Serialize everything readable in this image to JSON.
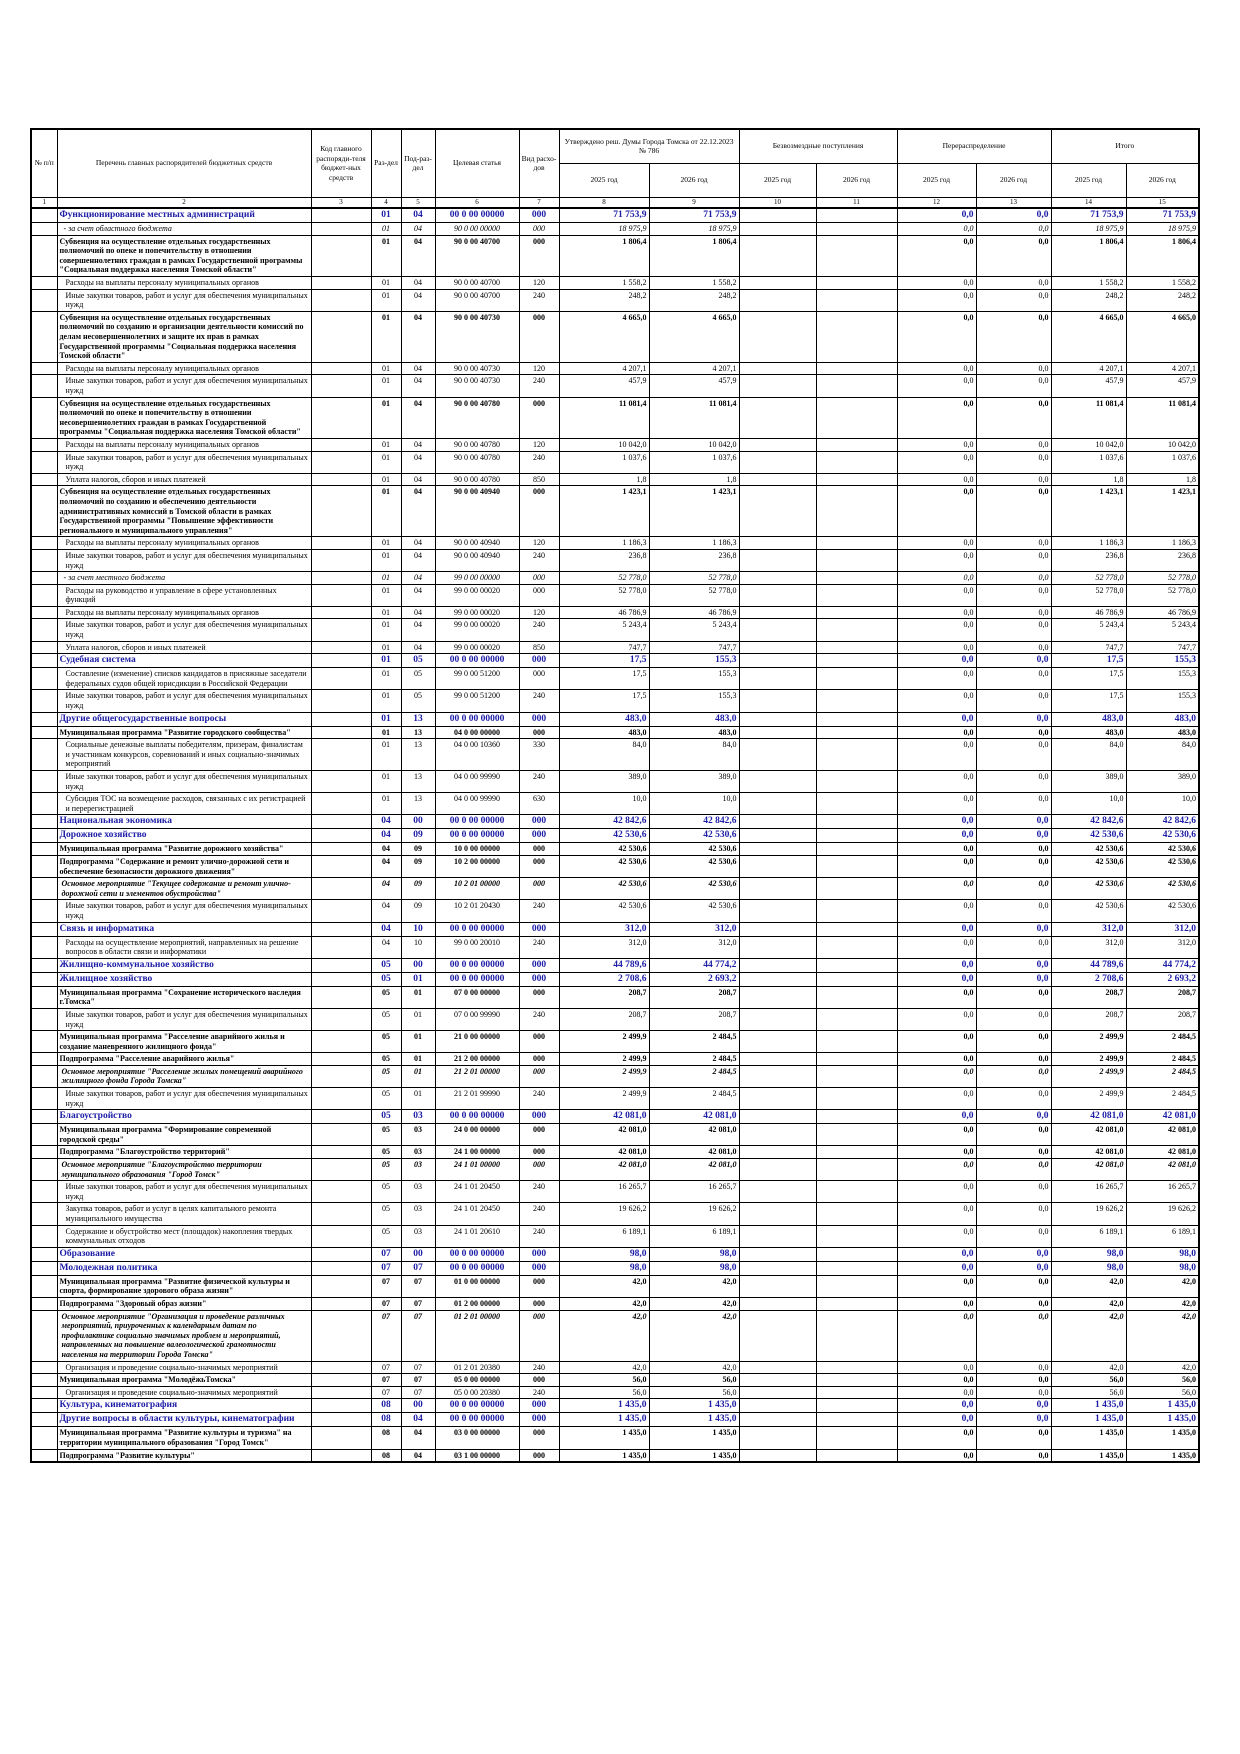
{
  "table": {
    "header": {
      "cols": [
        "№ п/п",
        "Перечень главных распорядителей бюджетных средств",
        "Код главного распоряди-теля бюджет-ных средств",
        "Раз-дел",
        "Под-раз-дел",
        "Целевая статья",
        "Вид расхо-дов"
      ],
      "groups": [
        "Утверждено реш. Думы Города Томска от 22.12.2023 № 786",
        "Безвозмездные поступления",
        "Перераспределение",
        "Итого"
      ],
      "years": [
        "2025 год",
        "2026 год",
        "2025 год",
        "2026 год",
        "2025 год",
        "2026 год",
        "2025 год",
        "2026 год"
      ]
    },
    "numbers": [
      1,
      2,
      3,
      4,
      5,
      6,
      7,
      8,
      9,
      10,
      11,
      12,
      13,
      14,
      15
    ],
    "rows": [
      [
        "s",
        "Функционирование местных администраций",
        "01",
        "04",
        "00 0 00 00000",
        "000",
        "71 753,9",
        "71 753,9",
        "0,0",
        "0,0",
        "71 753,9",
        "71 753,9"
      ],
      [
        "i",
        "- за счет областного бюджета",
        "01",
        "04",
        "90 0 00 00000",
        "000",
        "18 975,9",
        "18 975,9",
        "0,0",
        "0,0",
        "18 975,9",
        "18 975,9"
      ],
      [
        "b",
        "Субвенция на осуществление отдельных государственных полномочий по опеке и попечительству в отношении совершеннолетних граждан в рамках Государственной программы \"Социальная поддержка населения Томской области\"",
        "01",
        "04",
        "90 0 00 40700",
        "000",
        "1 806,4",
        "1 806,4",
        "0,0",
        "0,0",
        "1 806,4",
        "1 806,4"
      ],
      [
        "n",
        "Расходы на выплаты персоналу муниципальных органов",
        "01",
        "04",
        "90 0 00 40700",
        "120",
        "1 558,2",
        "1 558,2",
        "0,0",
        "0,0",
        "1 558,2",
        "1 558,2"
      ],
      [
        "n",
        "Иные закупки товаров, работ и услуг для обеспечения муниципальных нужд",
        "01",
        "04",
        "90 0 00 40700",
        "240",
        "248,2",
        "248,2",
        "0,0",
        "0,0",
        "248,2",
        "248,2"
      ],
      [
        "b",
        "Субвенция на осуществление отдельных государственных полномочий по созданию и организации деятельности комиссий по делам несовершеннолетних и защите их прав в рамках Государственной программы \"Социальная поддержка населения Томской области\"",
        "01",
        "04",
        "90 0 00 40730",
        "000",
        "4 665,0",
        "4 665,0",
        "0,0",
        "0,0",
        "4 665,0",
        "4 665,0"
      ],
      [
        "n",
        "Расходы на выплаты персоналу муниципальных органов",
        "01",
        "04",
        "90 0 00 40730",
        "120",
        "4 207,1",
        "4 207,1",
        "0,0",
        "0,0",
        "4 207,1",
        "4 207,1"
      ],
      [
        "n",
        "Иные закупки товаров, работ и услуг для обеспечения муниципальных нужд",
        "01",
        "04",
        "90 0 00 40730",
        "240",
        "457,9",
        "457,9",
        "0,0",
        "0,0",
        "457,9",
        "457,9"
      ],
      [
        "b",
        "Субвенция на осуществление отдельных государственных полномочий по опеке и попечительству в отношении несовершеннолетних граждан в рамках Государственной программы \"Социальная поддержка населения Томской области\"",
        "01",
        "04",
        "90 0 00 40780",
        "000",
        "11 081,4",
        "11 081,4",
        "0,0",
        "0,0",
        "11 081,4",
        "11 081,4"
      ],
      [
        "n",
        "Расходы на выплаты персоналу муниципальных органов",
        "01",
        "04",
        "90 0 00 40780",
        "120",
        "10 042,0",
        "10 042,0",
        "0,0",
        "0,0",
        "10 042,0",
        "10 042,0"
      ],
      [
        "n",
        "Иные закупки товаров, работ и услуг для обеспечения муниципальных нужд",
        "01",
        "04",
        "90 0 00 40780",
        "240",
        "1 037,6",
        "1 037,6",
        "0,0",
        "0,0",
        "1 037,6",
        "1 037,6"
      ],
      [
        "n",
        "Уплата налогов, сборов и иных платежей",
        "01",
        "04",
        "90 0 00 40780",
        "850",
        "1,8",
        "1,8",
        "0,0",
        "0,0",
        "1,8",
        "1,8"
      ],
      [
        "b",
        "Субвенция на осуществление отдельных государственных полномочий по созданию и обеспечению деятельности административных комиссий в Томской области в рамках Государственной программы \"Повышение эффективности регионального и муниципального управления\"",
        "01",
        "04",
        "90 0 00 40940",
        "000",
        "1 423,1",
        "1 423,1",
        "0,0",
        "0,0",
        "1 423,1",
        "1 423,1"
      ],
      [
        "n",
        "Расходы на выплаты персоналу муниципальных органов",
        "01",
        "04",
        "90 0 00 40940",
        "120",
        "1 186,3",
        "1 186,3",
        "0,0",
        "0,0",
        "1 186,3",
        "1 186,3"
      ],
      [
        "n",
        "Иные закупки товаров, работ и услуг для обеспечения муниципальных нужд",
        "01",
        "04",
        "90 0 00 40940",
        "240",
        "236,8",
        "236,8",
        "0,0",
        "0,0",
        "236,8",
        "236,8"
      ],
      [
        "i",
        "- за счет местного бюджета",
        "01",
        "04",
        "99 0 00 00000",
        "000",
        "52 778,0",
        "52 778,0",
        "0,0",
        "0,0",
        "52 778,0",
        "52 778,0"
      ],
      [
        "n",
        "Расходы на руководство и управление в сфере установленных функций",
        "01",
        "04",
        "99 0 00 00020",
        "000",
        "52 778,0",
        "52 778,0",
        "0,0",
        "0,0",
        "52 778,0",
        "52 778,0"
      ],
      [
        "n",
        "Расходы на выплаты персоналу муниципальных органов",
        "01",
        "04",
        "99 0 00 00020",
        "120",
        "46 786,9",
        "46 786,9",
        "0,0",
        "0,0",
        "46 786,9",
        "46 786,9"
      ],
      [
        "n",
        "Иные закупки товаров, работ и услуг для обеспечения муниципальных нужд",
        "01",
        "04",
        "99 0 00 00020",
        "240",
        "5 243,4",
        "5 243,4",
        "0,0",
        "0,0",
        "5 243,4",
        "5 243,4"
      ],
      [
        "n",
        "Уплата налогов, сборов и иных платежей",
        "01",
        "04",
        "99 0 00 00020",
        "850",
        "747,7",
        "747,7",
        "0,0",
        "0,0",
        "747,7",
        "747,7"
      ],
      [
        "s",
        "Судебная система",
        "01",
        "05",
        "00 0 00 00000",
        "000",
        "17,5",
        "155,3",
        "0,0",
        "0,0",
        "17,5",
        "155,3"
      ],
      [
        "n",
        "Составление (изменение) списков кандидатов в присяжные заседатели федеральных судов общей юрисдикции в Российской Федерации",
        "01",
        "05",
        "99 0 00 51200",
        "000",
        "17,5",
        "155,3",
        "0,0",
        "0,0",
        "17,5",
        "155,3"
      ],
      [
        "n",
        "Иные закупки товаров, работ и услуг для обеспечения муниципальных нужд",
        "01",
        "05",
        "99 0 00 51200",
        "240",
        "17,5",
        "155,3",
        "0,0",
        "0,0",
        "17,5",
        "155,3"
      ],
      [
        "s",
        "Другие общегосударственные вопросы",
        "01",
        "13",
        "00 0 00 00000",
        "000",
        "483,0",
        "483,0",
        "0,0",
        "0,0",
        "483,0",
        "483,0"
      ],
      [
        "b",
        "Муниципальная программа \"Развитие городского сообщества\"",
        "01",
        "13",
        "04 0 00 00000",
        "000",
        "483,0",
        "483,0",
        "0,0",
        "0,0",
        "483,0",
        "483,0"
      ],
      [
        "n",
        "Социальные денежные выплаты победителям, призерам, финалистам и участникам конкурсов, соревнований и иных социально-значимых мероприятий",
        "01",
        "13",
        "04 0 00 10360",
        "330",
        "84,0",
        "84,0",
        "0,0",
        "0,0",
        "84,0",
        "84,0"
      ],
      [
        "n",
        "Иные закупки товаров, работ и услуг для обеспечения муниципальных нужд",
        "01",
        "13",
        "04 0 00 99990",
        "240",
        "389,0",
        "389,0",
        "0,0",
        "0,0",
        "389,0",
        "389,0"
      ],
      [
        "n",
        "Субсидия ТОС на возмещение расходов, связанных с их регистрацией и перерегистрацией",
        "01",
        "13",
        "04 0 00 99990",
        "630",
        "10,0",
        "10,0",
        "0,0",
        "0,0",
        "10,0",
        "10,0"
      ],
      [
        "s",
        "Национальная экономика",
        "04",
        "00",
        "00 0 00 00000",
        "000",
        "42 842,6",
        "42 842,6",
        "0,0",
        "0,0",
        "42 842,6",
        "42 842,6"
      ],
      [
        "s",
        "Дорожное хозяйство",
        "04",
        "09",
        "00 0 00 00000",
        "000",
        "42 530,6",
        "42 530,6",
        "0,0",
        "0,0",
        "42 530,6",
        "42 530,6"
      ],
      [
        "b",
        "Муниципальная программа \"Развитие дорожного хозяйства\"",
        "04",
        "09",
        "10 0 00 00000",
        "000",
        "42 530,6",
        "42 530,6",
        "0,0",
        "0,0",
        "42 530,6",
        "42 530,6"
      ],
      [
        "b",
        "Подпрограмма \"Содержание и ремонт улично-дорожной сети и обеспечение безопасности дорожного движения\"",
        "04",
        "09",
        "10 2 00 00000",
        "000",
        "42 530,6",
        "42 530,6",
        "0,0",
        "0,0",
        "42 530,6",
        "42 530,6"
      ],
      [
        "bi",
        "Основное мероприятие \"Текущее содержание и ремонт улично-дорожной сети и элементов обустройства\"",
        "04",
        "09",
        "10 2 01 00000",
        "000",
        "42 530,6",
        "42 530,6",
        "0,0",
        "0,0",
        "42 530,6",
        "42 530,6"
      ],
      [
        "n",
        "Иные закупки товаров, работ и услуг для обеспечения муниципальных нужд",
        "04",
        "09",
        "10 2 01 20430",
        "240",
        "42 530,6",
        "42 530,6",
        "0,0",
        "0,0",
        "42 530,6",
        "42 530,6"
      ],
      [
        "s",
        "Связь и информатика",
        "04",
        "10",
        "00 0 00 00000",
        "000",
        "312,0",
        "312,0",
        "0,0",
        "0,0",
        "312,0",
        "312,0"
      ],
      [
        "n",
        "Расходы на осуществление мероприятий, направленных на решение вопросов в области связи и информатики",
        "04",
        "10",
        "99 0 00 20010",
        "240",
        "312,0",
        "312,0",
        "0,0",
        "0,0",
        "312,0",
        "312,0"
      ],
      [
        "s",
        "Жилищно-коммунальное хозяйство",
        "05",
        "00",
        "00 0 00 00000",
        "000",
        "44 789,6",
        "44 774,2",
        "0,0",
        "0,0",
        "44 789,6",
        "44 774,2"
      ],
      [
        "s",
        "Жилищное хозяйство",
        "05",
        "01",
        "00 0 00 00000",
        "000",
        "2 708,6",
        "2 693,2",
        "0,0",
        "0,0",
        "2 708,6",
        "2 693,2"
      ],
      [
        "b",
        "Муниципальная программа \"Сохранение исторического наследия г.Томска\"",
        "05",
        "01",
        "07 0 00 00000",
        "000",
        "208,7",
        "208,7",
        "0,0",
        "0,0",
        "208,7",
        "208,7"
      ],
      [
        "n",
        "Иные закупки товаров, работ и услуг для обеспечения муниципальных нужд",
        "05",
        "01",
        "07 0 00 99990",
        "240",
        "208,7",
        "208,7",
        "0,0",
        "0,0",
        "208,7",
        "208,7"
      ],
      [
        "b",
        "Муниципальная программа \"Расселение аварийного жилья и создание маневренного жилищного фонда\"",
        "05",
        "01",
        "21 0 00 00000",
        "000",
        "2 499,9",
        "2 484,5",
        "0,0",
        "0,0",
        "2 499,9",
        "2 484,5"
      ],
      [
        "b",
        "Подпрограмма \"Расселение аварийного жилья\"",
        "05",
        "01",
        "21 2 00 00000",
        "000",
        "2 499,9",
        "2 484,5",
        "0,0",
        "0,0",
        "2 499,9",
        "2 484,5"
      ],
      [
        "bi",
        "Основное мероприятие \"Расселение жилых помещений аварийного жилищного фонда Города Томска\"",
        "05",
        "01",
        "21 2 01 00000",
        "000",
        "2 499,9",
        "2 484,5",
        "0,0",
        "0,0",
        "2 499,9",
        "2 484,5"
      ],
      [
        "n",
        "Иные закупки товаров, работ и услуг для обеспечения муниципальных нужд",
        "05",
        "01",
        "21 2 01 99990",
        "240",
        "2 499,9",
        "2 484,5",
        "0,0",
        "0,0",
        "2 499,9",
        "2 484,5"
      ],
      [
        "s",
        "Благоустройство",
        "05",
        "03",
        "00 0 00 00000",
        "000",
        "42 081,0",
        "42 081,0",
        "0,0",
        "0,0",
        "42 081,0",
        "42 081,0"
      ],
      [
        "b",
        "Муниципальная программа \"Формирование современной городской среды\"",
        "05",
        "03",
        "24 0 00 00000",
        "000",
        "42 081,0",
        "42 081,0",
        "0,0",
        "0,0",
        "42 081,0",
        "42 081,0"
      ],
      [
        "b",
        "Подпрограмма \"Благоустройство территорий\"",
        "05",
        "03",
        "24 1 00 00000",
        "000",
        "42 081,0",
        "42 081,0",
        "0,0",
        "0,0",
        "42 081,0",
        "42 081,0"
      ],
      [
        "bi",
        "Основное мероприятие \"Благоустройство территории муниципального образования \"Город Томск\"",
        "05",
        "03",
        "24 1 01 00000",
        "000",
        "42 081,0",
        "42 081,0",
        "0,0",
        "0,0",
        "42 081,0",
        "42 081,0"
      ],
      [
        "n",
        "Иные закупки товаров, работ и услуг для обеспечения муниципальных нужд",
        "05",
        "03",
        "24 1 01 20450",
        "240",
        "16 265,7",
        "16 265,7",
        "0,0",
        "0,0",
        "16 265,7",
        "16 265,7"
      ],
      [
        "n",
        "Закупка товаров, работ и услуг в целях капитального ремонта муниципального имущества",
        "05",
        "03",
        "24 1 01 20450",
        "240",
        "19 626,2",
        "19 626,2",
        "0,0",
        "0,0",
        "19 626,2",
        "19 626,2"
      ],
      [
        "n",
        "Содержание и обустройство мест (площадок) накопления твердых коммунальных отходов",
        "05",
        "03",
        "24 1 01 20610",
        "240",
        "6 189,1",
        "6 189,1",
        "0,0",
        "0,0",
        "6 189,1",
        "6 189,1"
      ],
      [
        "s",
        "Образование",
        "07",
        "00",
        "00 0 00 00000",
        "000",
        "98,0",
        "98,0",
        "0,0",
        "0,0",
        "98,0",
        "98,0"
      ],
      [
        "s",
        "Молодежная политика",
        "07",
        "07",
        "00 0 00 00000",
        "000",
        "98,0",
        "98,0",
        "0,0",
        "0,0",
        "98,0",
        "98,0"
      ],
      [
        "b",
        "Муниципальная программа \"Развитие физической культуры и спорта, формирование здорового образа жизни\"",
        "07",
        "07",
        "01 0 00 00000",
        "000",
        "42,0",
        "42,0",
        "0,0",
        "0,0",
        "42,0",
        "42,0"
      ],
      [
        "b",
        "Подпрограмма \"Здоровый образ жизни\"",
        "07",
        "07",
        "01 2 00 00000",
        "000",
        "42,0",
        "42,0",
        "0,0",
        "0,0",
        "42,0",
        "42,0"
      ],
      [
        "bi",
        "Основное мероприятие \"Организация и проведение различных мероприятий, приуроченных к календарным датам по профилактике социально значимых проблем и мероприятий, направленных на повышение валеологической грамотности населения на территории Города Томска\"",
        "07",
        "07",
        "01 2 01 00000",
        "000",
        "42,0",
        "42,0",
        "0,0",
        "0,0",
        "42,0",
        "42,0"
      ],
      [
        "n",
        "Организация и проведение социально-значимых мероприятий",
        "07",
        "07",
        "01 2 01 20380",
        "240",
        "42,0",
        "42,0",
        "0,0",
        "0,0",
        "42,0",
        "42,0"
      ],
      [
        "b",
        "Муниципальная программа \"МолодёжьТомска\"",
        "07",
        "07",
        "05 0 00 00000",
        "000",
        "56,0",
        "56,0",
        "0,0",
        "0,0",
        "56,0",
        "56,0"
      ],
      [
        "n",
        "Организация и проведение социально-значимых мероприятий",
        "07",
        "07",
        "05 0 00 20380",
        "240",
        "56,0",
        "56,0",
        "0,0",
        "0,0",
        "56,0",
        "56,0"
      ],
      [
        "s",
        "Культура, кинематография",
        "08",
        "00",
        "00 0 00 00000",
        "000",
        "1 435,0",
        "1 435,0",
        "0,0",
        "0,0",
        "1 435,0",
        "1 435,0"
      ],
      [
        "s",
        "Другие вопросы в области культуры, кинематографии",
        "08",
        "04",
        "00 0 00 00000",
        "000",
        "1 435,0",
        "1 435,0",
        "0,0",
        "0,0",
        "1 435,0",
        "1 435,0"
      ],
      [
        "b",
        "Муниципальная программа \"Развитие культуры и туризма\" на территории муниципального образования \"Город Томск\"",
        "08",
        "04",
        "03 0 00 00000",
        "000",
        "1 435,0",
        "1 435,0",
        "0,0",
        "0,0",
        "1 435,0",
        "1 435,0"
      ],
      [
        "b",
        "Подпрограмма \"Развитие культуры\"",
        "08",
        "04",
        "03 1 00 00000",
        "000",
        "1 435,0",
        "1 435,0",
        "0,0",
        "0,0",
        "1 435,0",
        "1 435,0"
      ]
    ]
  }
}
